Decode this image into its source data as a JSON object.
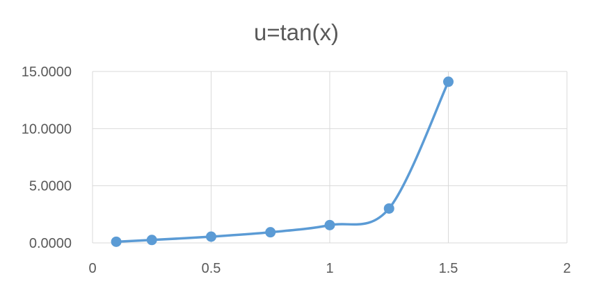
{
  "chart_data": {
    "type": "scatter",
    "title": "u=tan(x)",
    "xlabel": "",
    "ylabel": "",
    "xlim": [
      0,
      2
    ],
    "ylim": [
      0,
      15
    ],
    "x_ticks": [
      0,
      0.5,
      1,
      1.5,
      2
    ],
    "x_tick_labels": [
      "0",
      "0.5",
      "1",
      "1.5",
      "2"
    ],
    "y_ticks": [
      0,
      5,
      10,
      15
    ],
    "y_tick_labels": [
      "0.0000",
      "5.0000",
      "10.0000",
      "15.0000"
    ],
    "grid": true,
    "legend": "none",
    "smooth_line": true,
    "series": [
      {
        "color": "#5b9bd5",
        "x": [
          0.1,
          0.25,
          0.5,
          0.75,
          1.0,
          1.25,
          1.5
        ],
        "y": [
          0.1003,
          0.2553,
          0.5463,
          0.9316,
          1.5574,
          3.0096,
          14.1014
        ]
      }
    ]
  }
}
